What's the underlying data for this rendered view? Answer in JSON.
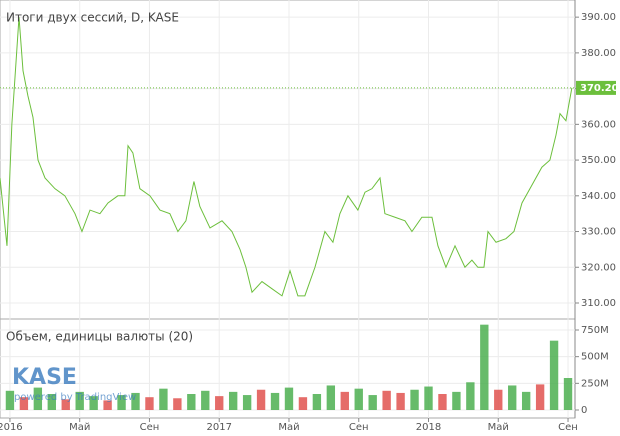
{
  "chart_data": {
    "type": "line",
    "title": "Итоги двух сессий, D, KASE",
    "volume_title": "Объем, единицы валюты (20)",
    "logo": "KASE",
    "watermark": "powered by TradingView",
    "color": "#6cbf3c",
    "x": [
      -0.57,
      -0.17,
      0.11,
      0.52,
      0.75,
      1.03,
      1.32,
      1.61,
      2.01,
      2.58,
      3.15,
      3.73,
      4.13,
      4.59,
      5.16,
      5.62,
      6.19,
      6.59,
      6.77,
      7.05,
      7.45,
      8.03,
      8.6,
      9.17,
      9.63,
      10.09,
      10.55,
      10.89,
      11.47,
      12.16,
      12.73,
      13.19,
      13.53,
      13.88,
      14.45,
      15.02,
      15.6,
      16.06,
      16.51,
      16.91,
      17.49,
      18.06,
      18.52,
      18.92,
      19.38,
      19.95,
      20.36,
      20.76,
      21.22,
      21.5,
      22.08,
      22.65,
      23.05,
      23.62,
      24.2,
      24.54,
      25,
      25.52,
      26.09,
      26.49,
      26.83,
      27.18,
      27.41,
      27.87,
      28.44,
      28.9,
      29.36,
      29.93,
      30.5,
      30.96,
      31.31,
      31.54,
      31.88,
      32.22
    ],
    "values": [
      345,
      326,
      360,
      390,
      375,
      368,
      362,
      350,
      345,
      342,
      340,
      335,
      330,
      336,
      335,
      338,
      340,
      340,
      354,
      352,
      342,
      340,
      336,
      335,
      330,
      333,
      344,
      337,
      331,
      333,
      330,
      325,
      320,
      313,
      316,
      314,
      312,
      319,
      312,
      312,
      320,
      330,
      327,
      335,
      340,
      336,
      341,
      342,
      345,
      335,
      334,
      333,
      330,
      334,
      334,
      326,
      320,
      326,
      320,
      322,
      320,
      320,
      330,
      327,
      328,
      330,
      338,
      343,
      348,
      350,
      357,
      363,
      361,
      370.2
    ],
    "last_price": {
      "value": 370.2,
      "label": "370.20"
    },
    "xlim": [
      -0.57,
      32.4
    ],
    "xticks": [
      {
        "value": 0,
        "label": "2016"
      },
      {
        "value": 4,
        "label": "Май"
      },
      {
        "value": 8,
        "label": "Сен"
      },
      {
        "value": 12,
        "label": "2017"
      },
      {
        "value": 16,
        "label": "Май"
      },
      {
        "value": 20,
        "label": "Сен"
      },
      {
        "value": 24,
        "label": "2018"
      },
      {
        "value": 28,
        "label": "Май"
      },
      {
        "value": 32,
        "label": "Сен"
      }
    ],
    "ylim": [
      305.8,
      394.8
    ],
    "yticks": [
      {
        "value": 310,
        "label": "310.00"
      },
      {
        "value": 320,
        "label": "320.00"
      },
      {
        "value": 330,
        "label": "330.00"
      },
      {
        "value": 340,
        "label": "340.00"
      },
      {
        "value": 350,
        "label": "350.00"
      },
      {
        "value": 360,
        "label": "360.00"
      },
      {
        "value": 370,
        "label": "370.00"
      },
      {
        "value": 380,
        "label": "380.00"
      },
      {
        "value": 390,
        "label": "390.00"
      }
    ],
    "grid": true,
    "volume": {
      "x": [
        0,
        0.8,
        1.6,
        2.4,
        3.2,
        4,
        4.8,
        5.6,
        6.4,
        7.2,
        8,
        8.8,
        9.6,
        10.4,
        11.2,
        12,
        12.8,
        13.6,
        14.4,
        15.2,
        16,
        16.8,
        17.6,
        18.4,
        19.2,
        20,
        20.8,
        21.6,
        22.4,
        23.2,
        24,
        24.8,
        25.6,
        26.4,
        27.2,
        28,
        28.8,
        29.6,
        30.4,
        31.2,
        32
      ],
      "values": [
        180000000,
        120000000,
        210000000,
        150000000,
        100000000,
        170000000,
        130000000,
        90000000,
        140000000,
        160000000,
        120000000,
        200000000,
        110000000,
        150000000,
        180000000,
        130000000,
        170000000,
        140000000,
        190000000,
        160000000,
        210000000,
        120000000,
        150000000,
        230000000,
        170000000,
        200000000,
        140000000,
        180000000,
        160000000,
        190000000,
        220000000,
        150000000,
        170000000,
        260000000,
        800000000,
        190000000,
        230000000,
        170000000,
        240000000,
        650000000,
        300000000
      ],
      "colors": [
        "#4caf50",
        "#e0524f",
        "#4caf50",
        "#4caf50",
        "#e0524f",
        "#4caf50",
        "#4caf50",
        "#e0524f",
        "#4caf50",
        "#4caf50",
        "#e0524f",
        "#4caf50",
        "#e0524f",
        "#4caf50",
        "#4caf50",
        "#e0524f",
        "#4caf50",
        "#4caf50",
        "#e0524f",
        "#4caf50",
        "#4caf50",
        "#e0524f",
        "#4caf50",
        "#4caf50",
        "#e0524f",
        "#4caf50",
        "#4caf50",
        "#e0524f",
        "#e0524f",
        "#4caf50",
        "#4caf50",
        "#e0524f",
        "#4caf50",
        "#4caf50",
        "#4caf50",
        "#e0524f",
        "#4caf50",
        "#4caf50",
        "#e0524f",
        "#4caf50",
        "#4caf50"
      ],
      "ylim": [
        -75000000,
        843750000
      ],
      "yticks": [
        0,
        {
          "value": 250000000,
          "label": "250M"
        },
        {
          "value": 500000000,
          "label": "500M"
        },
        {
          "value": 750000000,
          "label": "750M"
        }
      ]
    }
  }
}
